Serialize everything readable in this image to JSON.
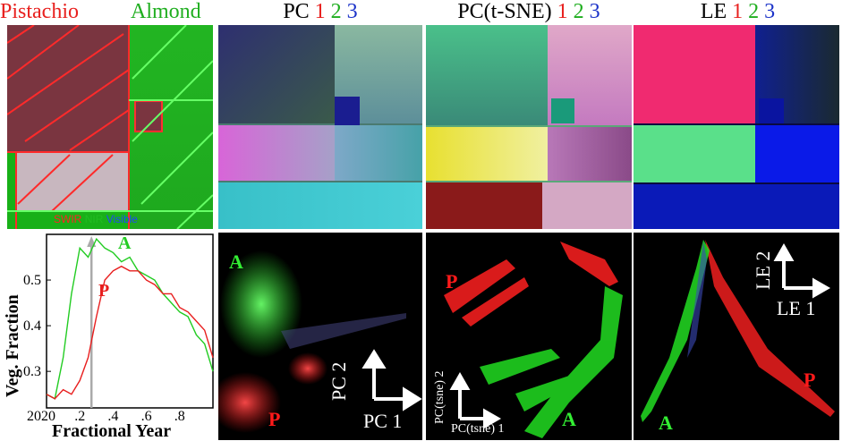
{
  "headers": {
    "rgb": {
      "pistachio": "Pistachio",
      "almond": "Almond"
    },
    "pc": {
      "label": "PC",
      "n1": "1",
      "n2": "2",
      "n3": "3"
    },
    "tsne": {
      "label": "PC(t-SNE)",
      "n1": "1",
      "n2": "2",
      "n3": "3"
    },
    "le": {
      "label": "LE",
      "n1": "1",
      "n2": "2",
      "n3": "3"
    }
  },
  "image_legend": {
    "swir": "SWIR",
    "nir": "NIR",
    "visible": "Visible"
  },
  "colors": {
    "red": "#e8201e",
    "green": "#1fae1f",
    "blue": "#1c33c9",
    "crop_red": "#ff1a1a",
    "crop_green": "#33ee33"
  },
  "time_series": {
    "ylabel": "Veg. Fraction",
    "xlabel": "Fractional Year",
    "x_ticks": [
      "2020",
      ".2",
      ".4",
      ".6",
      ".8"
    ],
    "y_ticks": [
      "0.3",
      "0.4",
      "0.5"
    ],
    "labels": {
      "almond": "A",
      "pistachio": "P"
    }
  },
  "scatter": {
    "pc": {
      "xlabel": "PC 1",
      "ylabel": "PC 2",
      "a": "A",
      "p": "P"
    },
    "tsne": {
      "xlabel": "PC(tsne) 1",
      "ylabel": "PC(tsne) 2",
      "a": "A",
      "p": "P"
    },
    "le": {
      "xlabel": "LE 1",
      "ylabel": "LE 2",
      "a": "A",
      "p": "P"
    }
  },
  "chart_data": {
    "type": "line",
    "xlabel": "Fractional Year",
    "ylabel": "Veg. Fraction",
    "xlim": [
      0,
      1
    ],
    "ylim": [
      0.22,
      0.6
    ],
    "vertical_marker_x": 0.27,
    "series": [
      {
        "name": "A",
        "x": [
          0.0,
          0.05,
          0.1,
          0.15,
          0.2,
          0.25,
          0.3,
          0.35,
          0.4,
          0.45,
          0.5,
          0.55,
          0.6,
          0.65,
          0.7,
          0.75,
          0.8,
          0.85,
          0.9,
          0.95,
          1.0
        ],
        "values": [
          0.25,
          0.24,
          0.33,
          0.47,
          0.57,
          0.55,
          0.59,
          0.57,
          0.56,
          0.54,
          0.55,
          0.52,
          0.51,
          0.5,
          0.47,
          0.45,
          0.43,
          0.42,
          0.38,
          0.36,
          0.3
        ]
      },
      {
        "name": "P",
        "x": [
          0.0,
          0.05,
          0.1,
          0.15,
          0.2,
          0.25,
          0.3,
          0.35,
          0.4,
          0.45,
          0.5,
          0.55,
          0.6,
          0.65,
          0.7,
          0.75,
          0.8,
          0.85,
          0.9,
          0.95,
          1.0
        ],
        "values": [
          0.25,
          0.24,
          0.26,
          0.25,
          0.28,
          0.33,
          0.42,
          0.5,
          0.52,
          0.53,
          0.52,
          0.52,
          0.5,
          0.49,
          0.47,
          0.47,
          0.44,
          0.43,
          0.41,
          0.39,
          0.33
        ]
      }
    ]
  }
}
